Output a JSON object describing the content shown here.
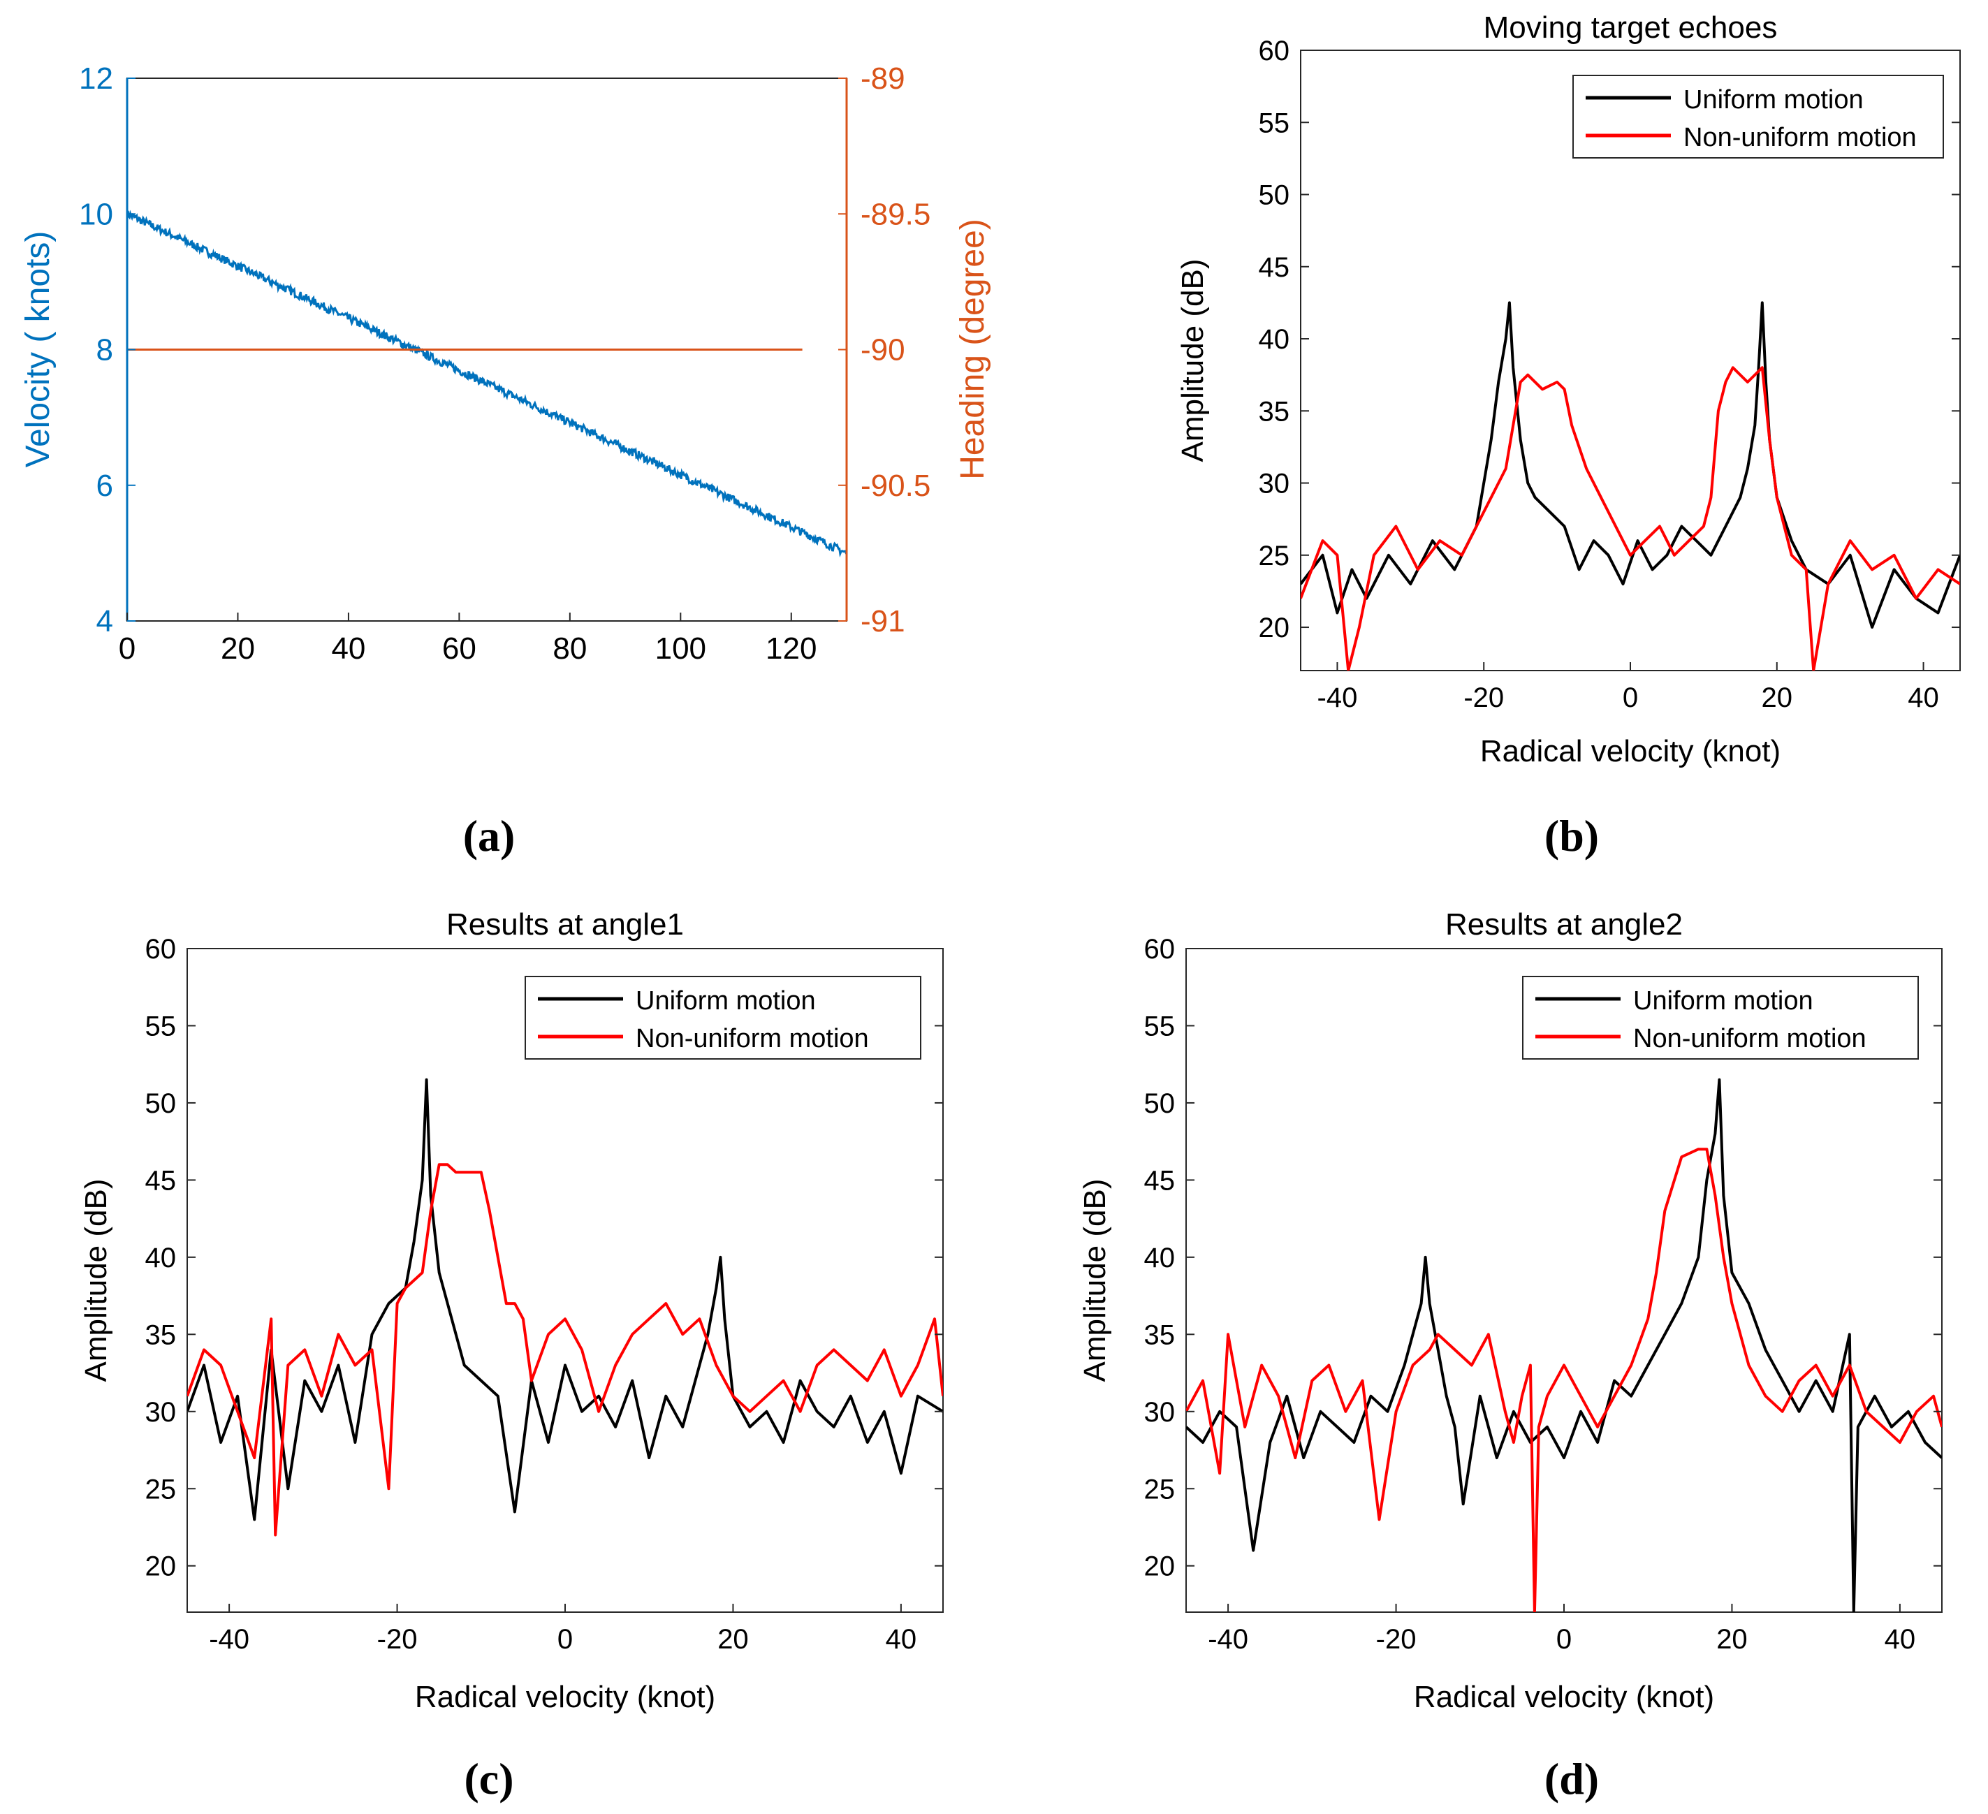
{
  "panel_labels": [
    "(a)",
    "(b)",
    "(c)",
    "(d)"
  ],
  "colors": {
    "blue": "#0072BD",
    "orange": "#D95319",
    "black": "#000000",
    "red": "#FF0000"
  },
  "chart_data": [
    {
      "id": "a",
      "type": "line",
      "title": "",
      "xlabel": "",
      "xlim": [
        0,
        130
      ],
      "xticks": [
        0,
        20,
        40,
        60,
        80,
        100,
        120
      ],
      "left_axis": {
        "label": "Velocity ( knots)",
        "ylim": [
          4,
          12
        ],
        "ticks": [
          4,
          6,
          8,
          10,
          12
        ],
        "color": "#0072BD"
      },
      "right_axis": {
        "label": "Heading (degree)",
        "ylim": [
          -91,
          -89
        ],
        "ticks": [
          "-91",
          "-90.5",
          "-90",
          "-89.5",
          "-89"
        ],
        "color": "#D95319"
      },
      "series": [
        {
          "name": "Velocity",
          "axis": "left",
          "color": "#0072BD",
          "x": [
            0,
            130
          ],
          "y": [
            10.0,
            5.0
          ],
          "noise": 0.06
        },
        {
          "name": "Heading",
          "axis": "right",
          "color": "#D95319",
          "x": [
            0,
            122
          ],
          "y": [
            -90,
            -90
          ]
        }
      ]
    },
    {
      "id": "b",
      "type": "line",
      "title": "Moving target echoes",
      "xlabel": "Radical velocity (knot)",
      "ylabel": "Amplitude (dB)",
      "xlim": [
        -45,
        45
      ],
      "ylim": [
        17,
        60
      ],
      "xticks": [
        -40,
        -20,
        0,
        20,
        40
      ],
      "yticks": [
        20,
        25,
        30,
        35,
        40,
        45,
        50,
        55,
        60
      ],
      "legend": "top-right",
      "series": [
        {
          "name": "Uniform motion",
          "color": "#000000",
          "x": [
            -45,
            -42,
            -40,
            -38,
            -36,
            -33,
            -30,
            -27,
            -24,
            -21,
            -19,
            -18,
            -17,
            -16.5,
            -16,
            -15,
            -14,
            -13,
            -11,
            -9,
            -7,
            -5,
            -3,
            -1,
            1,
            3,
            5,
            7,
            9,
            11,
            13,
            15,
            16,
            17,
            17.5,
            18,
            18.5,
            19,
            20,
            22,
            24,
            27,
            30,
            33,
            36,
            39,
            42,
            45
          ],
          "y": [
            23,
            25,
            21,
            24,
            22,
            25,
            23,
            26,
            24,
            27,
            33,
            37,
            40,
            42.5,
            38,
            33,
            30,
            29,
            28,
            27,
            24,
            26,
            25,
            23,
            26,
            24,
            25,
            27,
            26,
            25,
            27,
            29,
            31,
            34,
            38,
            42.5,
            37,
            33,
            29,
            26,
            24,
            23,
            25,
            20,
            24,
            22,
            21,
            25
          ]
        },
        {
          "name": "Non-uniform motion",
          "color": "#FF0000",
          "x": [
            -45,
            -42,
            -40,
            -38.5,
            -37,
            -35,
            -32,
            -29,
            -26,
            -23,
            -21,
            -19,
            -17,
            -16,
            -15,
            -14,
            -12,
            -10,
            -9,
            -8,
            -6,
            -4,
            -2,
            0,
            2,
            4,
            6,
            8,
            10,
            11,
            12,
            13,
            14,
            16,
            18,
            19,
            20,
            21,
            22,
            24,
            25,
            27,
            30,
            33,
            36,
            39,
            42,
            45
          ],
          "y": [
            22,
            26,
            25,
            17,
            20,
            25,
            27,
            24,
            26,
            25,
            27,
            29,
            31,
            34,
            37,
            37.5,
            36.5,
            37,
            36.5,
            34,
            31,
            29,
            27,
            25,
            26,
            27,
            25,
            26,
            27,
            29,
            35,
            37,
            38,
            37,
            38,
            33,
            29,
            27,
            25,
            24,
            17,
            23,
            26,
            24,
            25,
            22,
            24,
            23
          ]
        }
      ]
    },
    {
      "id": "c",
      "type": "line",
      "title": "Results at angle1",
      "xlabel": "Radical velocity (knot)",
      "ylabel": "Amplitude (dB)",
      "xlim": [
        -45,
        45
      ],
      "ylim": [
        17,
        60
      ],
      "xticks": [
        -40,
        -20,
        0,
        20,
        40
      ],
      "yticks": [
        20,
        25,
        30,
        35,
        40,
        45,
        50,
        55,
        60
      ],
      "legend": "top-right",
      "series": [
        {
          "name": "Uniform motion",
          "color": "#000000",
          "x": [
            -45,
            -43,
            -41,
            -39,
            -37,
            -35,
            -33,
            -31,
            -29,
            -27,
            -25,
            -23,
            -21,
            -19,
            -18,
            -17,
            -16.5,
            -16,
            -15,
            -14,
            -13,
            -12,
            -10,
            -8,
            -6,
            -4,
            -2,
            0,
            2,
            4,
            6,
            8,
            10,
            12,
            14,
            16,
            17,
            18,
            18.5,
            19,
            20,
            22,
            24,
            26,
            28,
            30,
            32,
            34,
            36,
            38,
            40,
            42,
            45
          ],
          "y": [
            30,
            33,
            28,
            31,
            23,
            34,
            25,
            32,
            30,
            33,
            28,
            35,
            37,
            38,
            41,
            45,
            51.5,
            44,
            39,
            37,
            35,
            33,
            32,
            31,
            23.5,
            32,
            28,
            33,
            30,
            31,
            29,
            32,
            27,
            31,
            29,
            33,
            35,
            38,
            40,
            36,
            31,
            29,
            30,
            28,
            32,
            30,
            29,
            31,
            28,
            30,
            26,
            31,
            30
          ]
        },
        {
          "name": "Non-uniform motion",
          "color": "#FF0000",
          "x": [
            -45,
            -43,
            -41,
            -39,
            -37,
            -35,
            -34.5,
            -33,
            -31,
            -29,
            -27,
            -25,
            -23,
            -21,
            -20,
            -19,
            -17,
            -16,
            -15,
            -14,
            -13,
            -11,
            -10,
            -9,
            -8,
            -7,
            -6,
            -5,
            -4,
            -2,
            0,
            2,
            4,
            6,
            8,
            10,
            12,
            14,
            16,
            18,
            20,
            22,
            24,
            26,
            28,
            30,
            32,
            34,
            36,
            38,
            40,
            42,
            44,
            45
          ],
          "y": [
            31,
            34,
            33,
            30,
            27,
            36,
            22,
            33,
            34,
            31,
            35,
            33,
            34,
            25,
            37,
            38,
            39,
            43,
            46,
            46,
            45.5,
            45.5,
            45.5,
            43,
            40,
            37,
            37,
            36,
            32,
            35,
            36,
            34,
            30,
            33,
            35,
            36,
            37,
            35,
            36,
            33,
            31,
            30,
            31,
            32,
            30,
            33,
            34,
            33,
            32,
            34,
            31,
            33,
            36,
            31
          ]
        }
      ]
    },
    {
      "id": "d",
      "type": "line",
      "title": "Results at angle2",
      "xlabel": "Radical velocity (knot)",
      "ylabel": "Amplitude (dB)",
      "xlim": [
        -45,
        45
      ],
      "ylim": [
        17,
        60
      ],
      "xticks": [
        -40,
        -20,
        0,
        20,
        40
      ],
      "yticks": [
        20,
        25,
        30,
        35,
        40,
        45,
        50,
        55,
        60
      ],
      "legend": "top-right",
      "series": [
        {
          "name": "Uniform motion",
          "color": "#000000",
          "x": [
            -45,
            -43,
            -41,
            -39,
            -37,
            -35,
            -33,
            -31,
            -29,
            -27,
            -25,
            -23,
            -21,
            -19,
            -17,
            -16.5,
            -16,
            -15,
            -14,
            -13,
            -12,
            -10,
            -8,
            -6,
            -4,
            -2,
            0,
            2,
            4,
            6,
            8,
            10,
            12,
            14,
            16,
            17,
            18,
            18.5,
            19,
            20,
            22,
            24,
            26,
            28,
            30,
            32,
            34,
            34.5,
            35,
            37,
            39,
            41,
            43,
            45
          ],
          "y": [
            29,
            28,
            30,
            29,
            21,
            28,
            31,
            27,
            30,
            29,
            28,
            31,
            30,
            33,
            37,
            40,
            37,
            34,
            31,
            29,
            24,
            31,
            27,
            30,
            28,
            29,
            27,
            30,
            28,
            32,
            31,
            33,
            35,
            37,
            40,
            45,
            48,
            51.5,
            44,
            39,
            37,
            34,
            32,
            30,
            32,
            30,
            35,
            17,
            29,
            31,
            29,
            30,
            28,
            27
          ]
        },
        {
          "name": "Non-uniform motion",
          "color": "#FF0000",
          "x": [
            -45,
            -43,
            -41,
            -40,
            -38,
            -36,
            -34,
            -32,
            -30,
            -28,
            -26,
            -24,
            -22,
            -20,
            -18,
            -16,
            -15,
            -13,
            -11,
            -9,
            -7,
            -6,
            -5,
            -4,
            -3.5,
            -3,
            -2,
            0,
            2,
            4,
            6,
            8,
            10,
            11,
            12,
            14,
            16,
            17,
            18,
            19,
            20,
            22,
            24,
            26,
            28,
            30,
            32,
            34,
            36,
            38,
            40,
            42,
            44,
            45
          ],
          "y": [
            30,
            32,
            26,
            35,
            29,
            33,
            31,
            27,
            32,
            33,
            30,
            32,
            23,
            30,
            33,
            34,
            35,
            34,
            33,
            35,
            30,
            28,
            31,
            33,
            17,
            29,
            31,
            33,
            31,
            29,
            31,
            33,
            36,
            39,
            43,
            46.5,
            47,
            47,
            44,
            40,
            37,
            33,
            31,
            30,
            32,
            33,
            31,
            33,
            30,
            29,
            28,
            30,
            31,
            29
          ]
        }
      ]
    }
  ]
}
